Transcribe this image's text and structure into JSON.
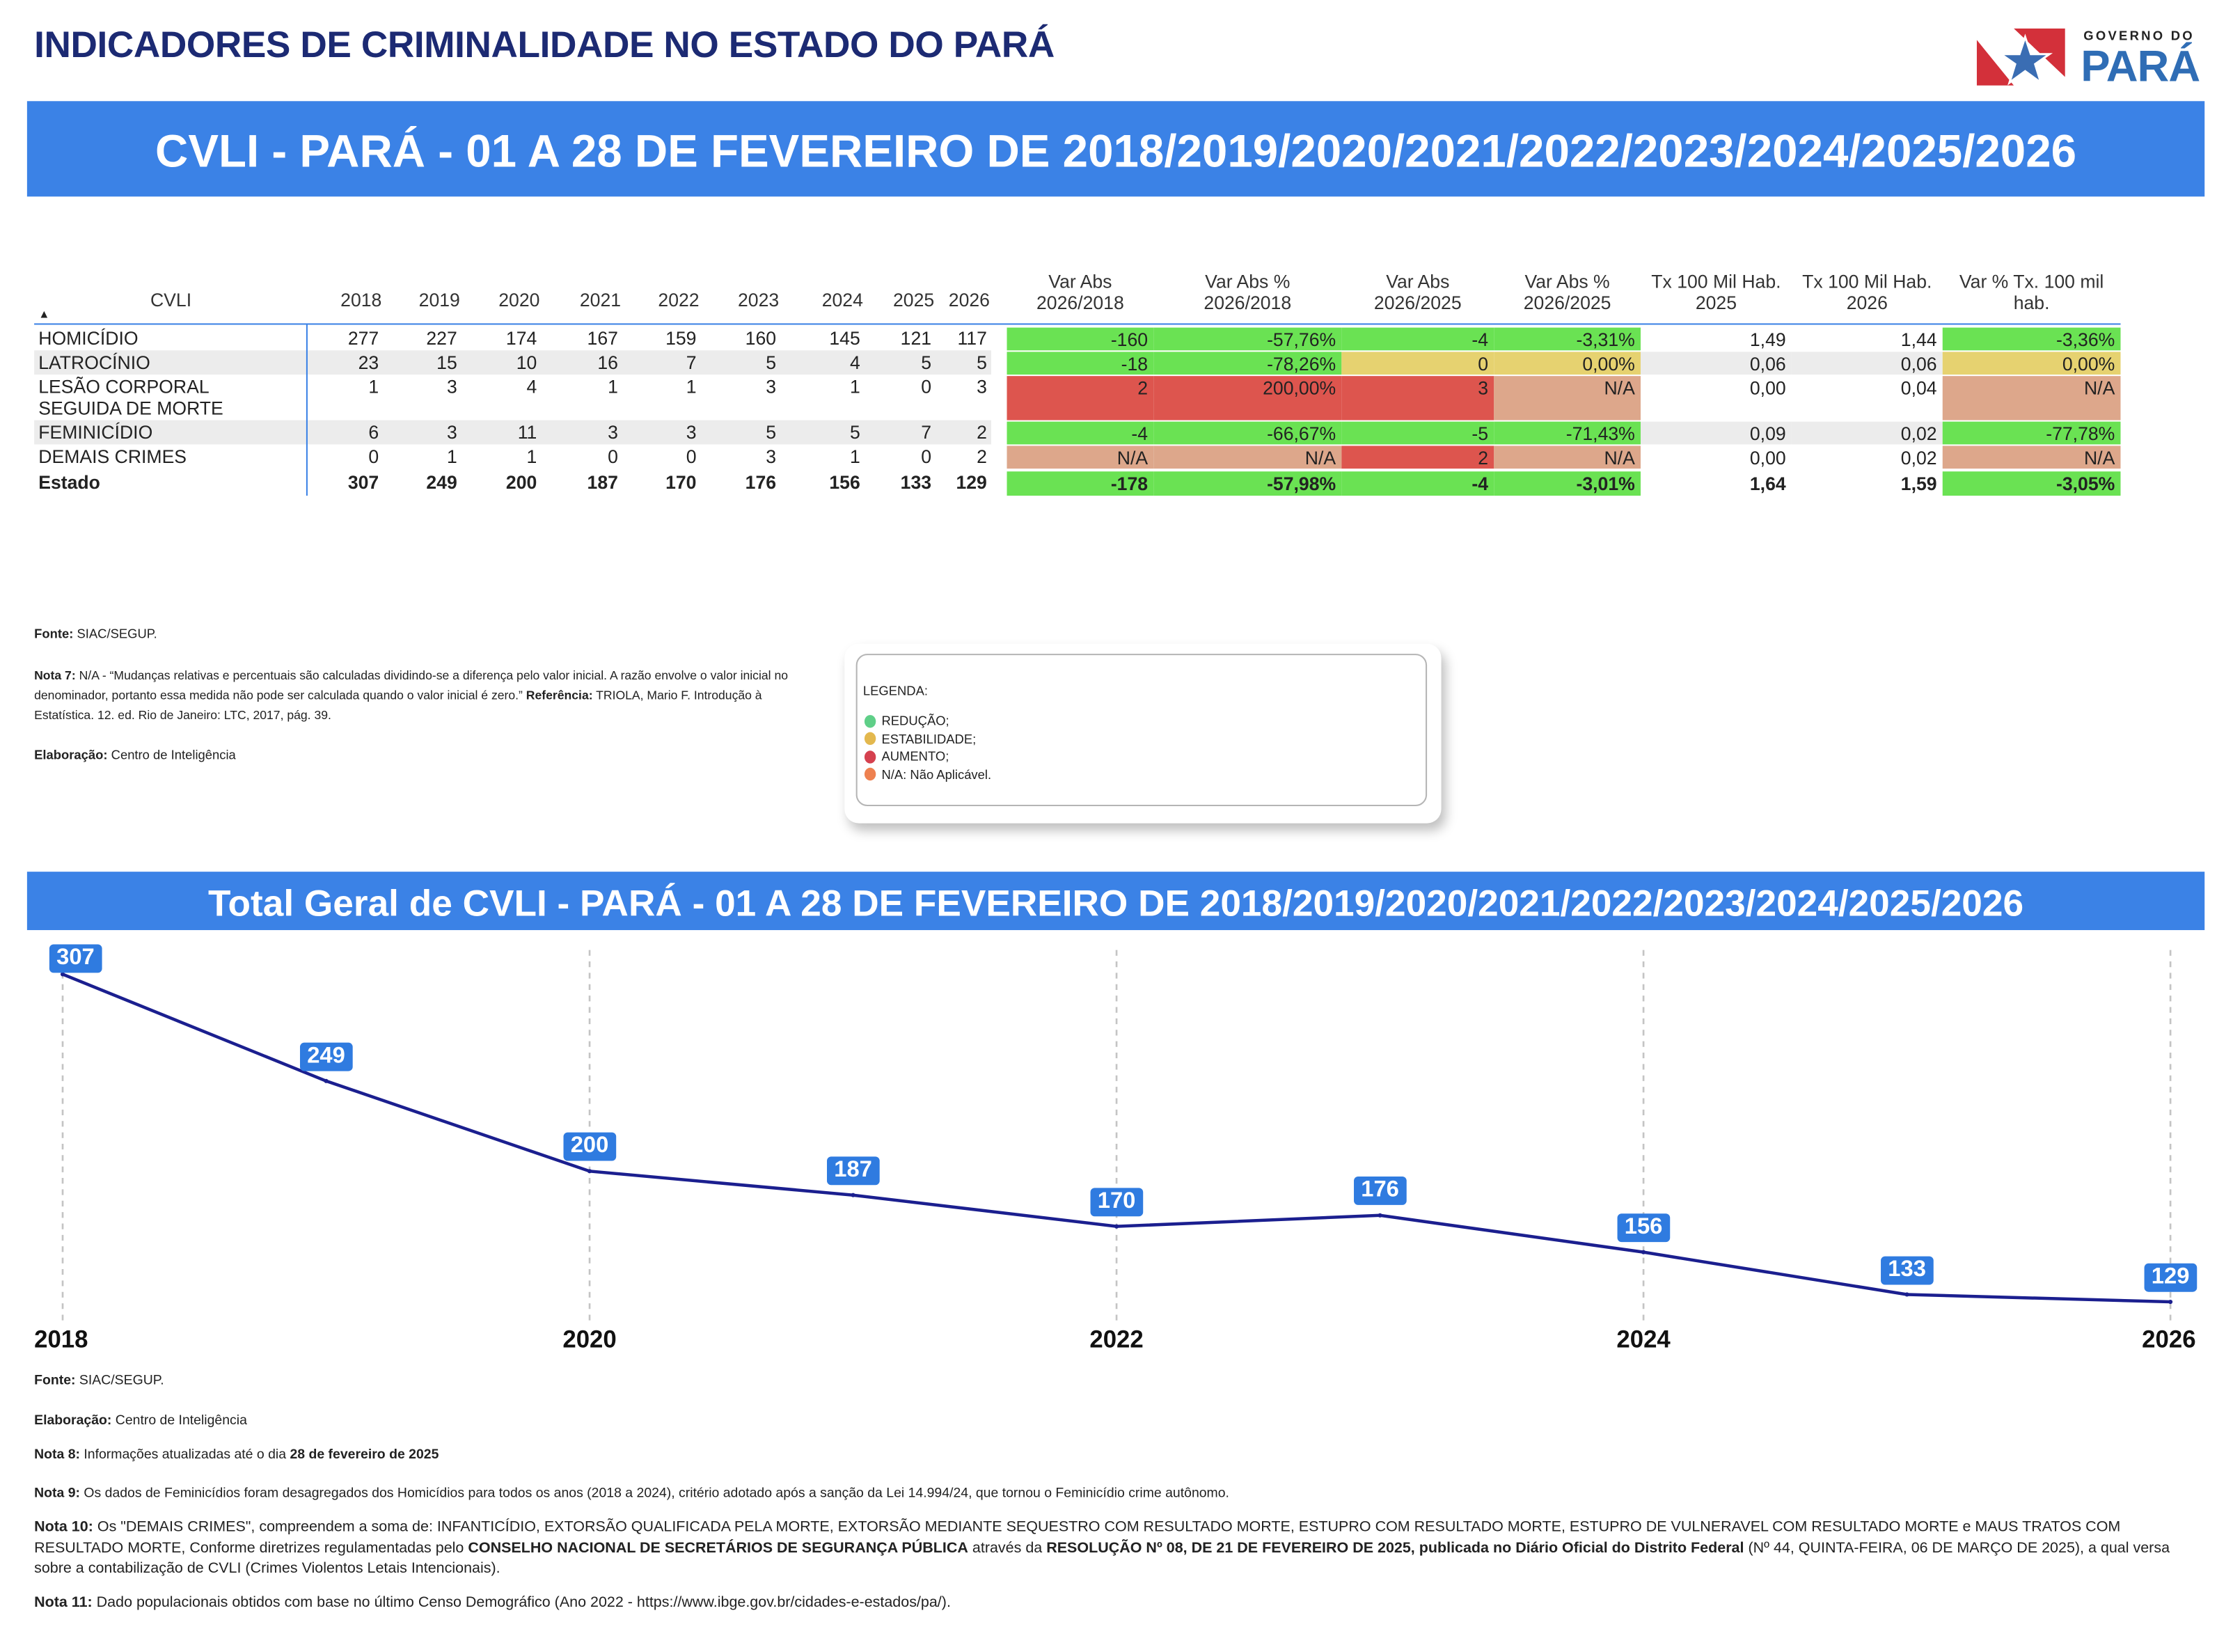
{
  "header": {
    "title": "INDICADORES DE CRIMINALIDADE NO ESTADO DO PARÁ",
    "logo_top": "GOVERNO DO",
    "logo_main": "PARÁ"
  },
  "banner1": "CVLI - PARÁ - 01 A 28 DE FEVEREIRO DE 2018/2019/2020/2021/2022/2023/2024/2025/2026",
  "table": {
    "col_cvli": "CVLI",
    "years": [
      "2018",
      "2019",
      "2020",
      "2021",
      "2022",
      "2023",
      "2024",
      "2025",
      "2026"
    ],
    "metric_headers": [
      [
        "Var Abs",
        "2026/2018"
      ],
      [
        "Var Abs %",
        "2026/2018"
      ],
      [
        "Var Abs",
        "2026/2025"
      ],
      [
        "Var Abs %",
        "2026/2025"
      ],
      [
        "Tx 100 Mil Hab.",
        "2025"
      ],
      [
        "Tx 100 Mil Hab.",
        "2026"
      ],
      [
        "Var % Tx. 100 mil",
        "hab."
      ]
    ],
    "rows": [
      {
        "label": "HOMICÍDIO",
        "values": [
          "277",
          "227",
          "174",
          "167",
          "159",
          "160",
          "145",
          "121",
          "117"
        ],
        "metrics": [
          "-160",
          "-57,76%",
          "-4",
          "-3,31%",
          "1,49",
          "1,44",
          "-3,36%"
        ],
        "status": [
          "g",
          "g",
          "g",
          "g",
          "w",
          "w",
          "g"
        ]
      },
      {
        "label": "LATROCÍNIO",
        "values": [
          "23",
          "15",
          "10",
          "16",
          "7",
          "5",
          "4",
          "5",
          "5"
        ],
        "metrics": [
          "-18",
          "-78,26%",
          "0",
          "0,00%",
          "0,06",
          "0,06",
          "0,00%"
        ],
        "status": [
          "g",
          "g",
          "y",
          "y",
          "e",
          "e",
          "y"
        ]
      },
      {
        "label": "LESÃO CORPORAL SEGUIDA DE MORTE",
        "values": [
          "1",
          "3",
          "4",
          "1",
          "1",
          "3",
          "1",
          "0",
          "3"
        ],
        "metrics": [
          "2",
          "200,00%",
          "3",
          "N/A",
          "0,00",
          "0,04",
          "N/A"
        ],
        "status": [
          "r",
          "r",
          "r",
          "s",
          "w",
          "w",
          "s"
        ]
      },
      {
        "label": "FEMINICÍDIO",
        "values": [
          "6",
          "3",
          "11",
          "3",
          "3",
          "5",
          "5",
          "7",
          "2"
        ],
        "metrics": [
          "-4",
          "-66,67%",
          "-5",
          "-71,43%",
          "0,09",
          "0,02",
          "-77,78%"
        ],
        "status": [
          "g",
          "g",
          "g",
          "g",
          "e",
          "e",
          "g"
        ]
      },
      {
        "label": "DEMAIS CRIMES",
        "values": [
          "0",
          "1",
          "1",
          "0",
          "0",
          "3",
          "1",
          "0",
          "2"
        ],
        "metrics": [
          "N/A",
          "N/A",
          "2",
          "N/A",
          "0,00",
          "0,02",
          "N/A"
        ],
        "status": [
          "s",
          "s",
          "r",
          "s",
          "w",
          "w",
          "s"
        ]
      },
      {
        "label": "Estado",
        "values": [
          "307",
          "249",
          "200",
          "187",
          "170",
          "176",
          "156",
          "133",
          "129"
        ],
        "metrics": [
          "-178",
          "-57,98%",
          "-4",
          "-3,01%",
          "1,64",
          "1,59",
          "-3,05%"
        ],
        "status": [
          "g",
          "g",
          "g",
          "g",
          "w",
          "w",
          "g"
        ]
      }
    ]
  },
  "status_colors": {
    "g": "#6ae253",
    "y": "#e6d270",
    "r": "#dd554e",
    "s": "#dda78b",
    "w": "#ffffff",
    "e": "#ececec"
  },
  "notes_top": {
    "fonte_label": "Fonte:",
    "fonte": " SIAC/SEGUP.",
    "nota7_label": "Nota 7:",
    "nota7": " N/A - “Mudanças relativas e percentuais são calculadas dividindo-se a diferença pelo valor inicial. A razão envolve o valor inicial no denominador, portanto essa medida não pode ser calculada quando o valor inicial é zero.” ",
    "ref_label": "Referência:",
    "ref": " TRIOLA, Mario F. Introdução à Estatística. 12. ed. Rio de Janeiro: LTC, 2017, pág. 39.",
    "elab_label": "Elaboração:",
    "elab": " Centro de Inteligência"
  },
  "legend": {
    "title": "LEGENDA:",
    "items": [
      {
        "label": "REDUÇÃO;",
        "color": "#5fcf88"
      },
      {
        "label": "ESTABILIDADE;",
        "color": "#e3b84e"
      },
      {
        "label": "AUMENTO;",
        "color": "#d5414f"
      },
      {
        "label": "N/A: Não Aplicável.",
        "color": "#ee8150"
      }
    ]
  },
  "banner2": "Total Geral de CVLI - PARÁ - 01 A 28 DE FEVEREIRO DE 2018/2019/2020/2021/2022/2023/2024/2025/2026",
  "chart_data": {
    "type": "line",
    "title": "Total Geral de CVLI - PARÁ - 01 A 28 DE FEVEREIRO DE 2018/2019/2020/2021/2022/2023/2024/2025/2026",
    "x": [
      2018,
      2019,
      2020,
      2021,
      2022,
      2023,
      2024,
      2025,
      2026
    ],
    "values": [
      307,
      249,
      200,
      187,
      170,
      176,
      156,
      133,
      129
    ],
    "value_labels": [
      "307",
      "249",
      "200",
      "187",
      "170",
      "176",
      "156",
      "133",
      "129"
    ],
    "x_tick_labels": [
      "2018",
      "2020",
      "2022",
      "2024",
      "2026"
    ],
    "x_ticks": [
      2018,
      2020,
      2022,
      2024,
      2026
    ],
    "xlabel": "",
    "ylabel": "",
    "line_color": "#1b1f8f",
    "label_color": "#2f7be0"
  },
  "notes_bottom": {
    "fonte_label": "Fonte:",
    "fonte": " SIAC/SEGUP.",
    "elab_label": "Elaboração:",
    "elab": " Centro de Inteligência",
    "nota8_label": "Nota 8:",
    "nota8": " Informações atualizadas até o dia ",
    "nota8_date": " 28 de fevereiro de 2025",
    "nota9_label": "Nota 9:",
    "nota9": " Os dados de Feminicídios foram desagregados dos Homicídios para todos os anos (2018 a 2024), critério adotado após a sanção da Lei 14.994/24, que tornou o Feminicídio crime autônomo.",
    "nota10_label": "Nota 10:",
    "nota10_a": " Os \"DEMAIS CRIMES\", compreendem a soma de: INFANTICÍDIO, EXTORSÃO QUALIFICADA PELA MORTE, EXTORSÃO MEDIANTE SEQUESTRO COM RESULTADO MORTE, ESTUPRO COM RESULTADO MORTE, ESTUPRO DE VULNERAVEL COM RESULTADO MORTE e MAUS TRATOS COM RESULTADO MORTE, Conforme diretrizes regulamentadas pelo ",
    "nota10_b": "CONSELHO NACIONAL DE SECRETÁRIOS DE SEGURANÇA PÚBLICA",
    "nota10_c": " através da ",
    "nota10_d": "RESOLUÇÃO Nº 08, DE 21 DE FEVEREIRO DE 2025, publicada no Diário Oficial do Distrito Federal",
    "nota10_e": " (Nº 44, QUINTA-FEIRA, 06 DE MARÇO DE 2025), a qual versa sobre a contabilização de CVLI (Crimes Violentos Letais Intencionais).",
    "nota11_label": "Nota 11:",
    "nota11": " Dado populacionais obtidos com base no último Censo Demográfico (Ano 2022 - ",
    "nota11_link": "https://www.ibge.gov.br/cidades-e-estados/pa/",
    "nota11_end": ")."
  }
}
